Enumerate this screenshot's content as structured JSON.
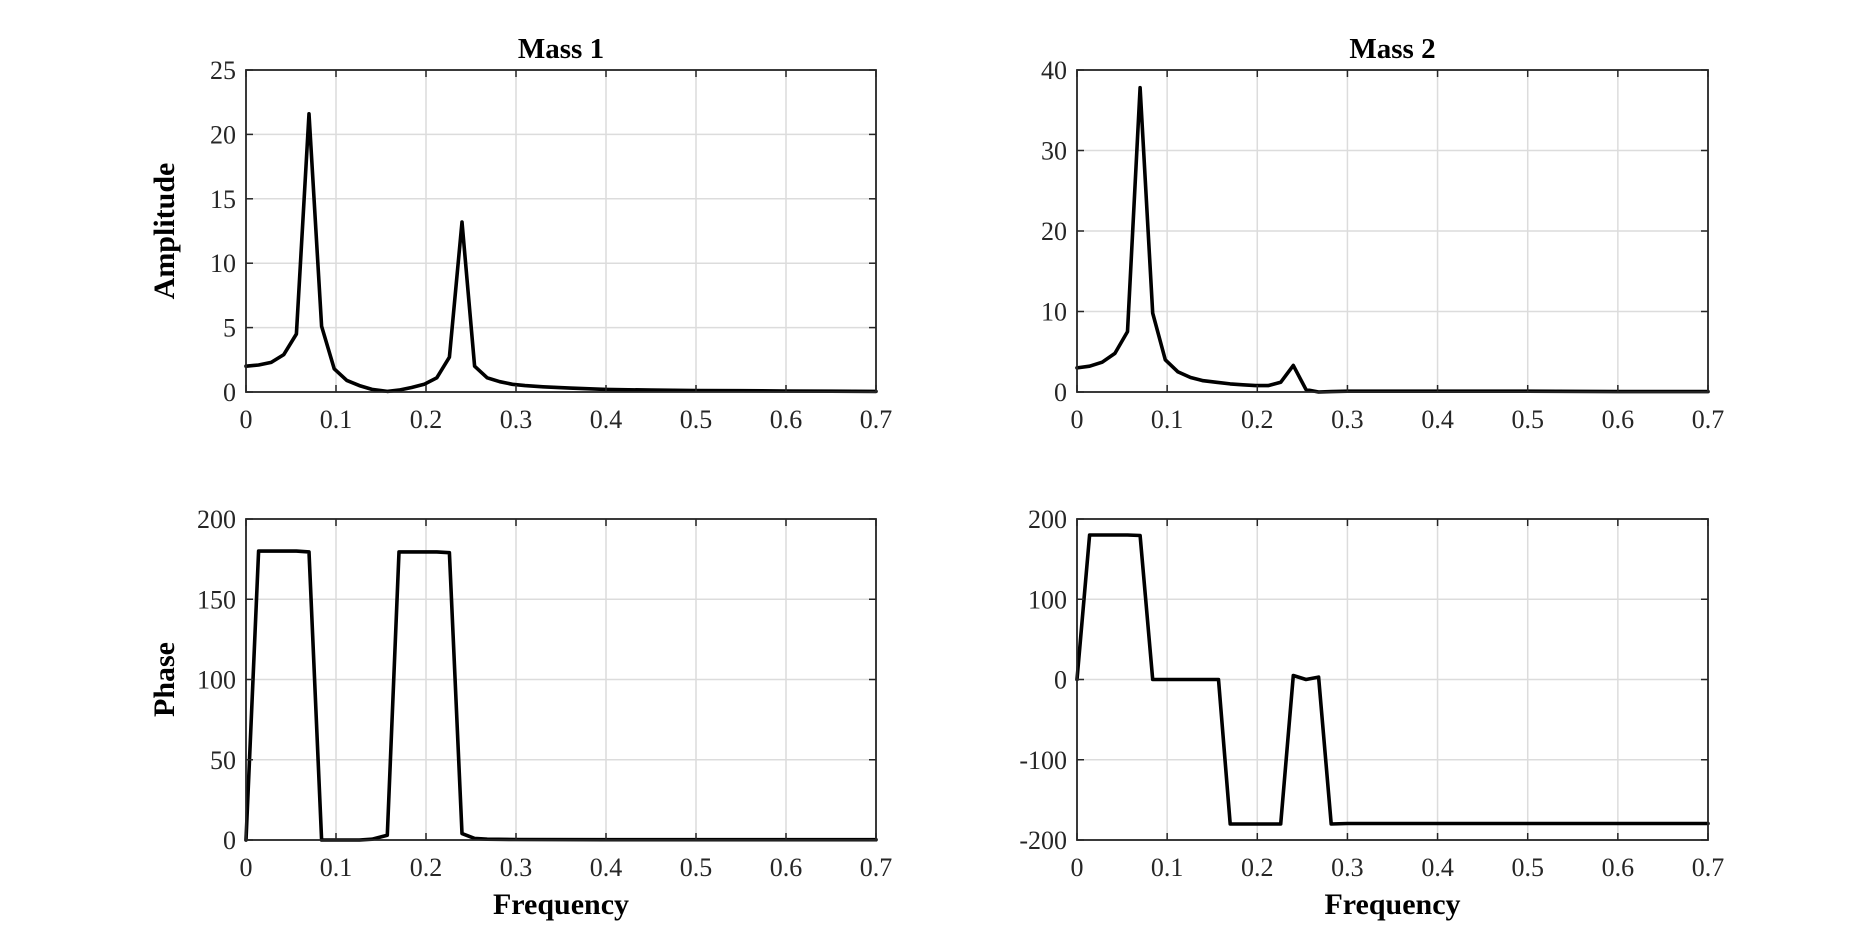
{
  "chart_data": [
    {
      "type": "line",
      "title": "Mass 1",
      "xlabel": "",
      "ylabel": "Amplitude",
      "xlim": [
        0,
        0.7
      ],
      "ylim": [
        0,
        25
      ],
      "xticks": [
        "0",
        "0.1",
        "0.2",
        "0.3",
        "0.4",
        "0.5",
        "0.6",
        "0.7"
      ],
      "yticks": [
        "0",
        "5",
        "10",
        "15",
        "20",
        "25"
      ],
      "grid": true,
      "series": [
        {
          "color": "#000000",
          "x": [
            0,
            0.014,
            0.028,
            0.042,
            0.056,
            0.07,
            0.084,
            0.098,
            0.112,
            0.126,
            0.14,
            0.157,
            0.17,
            0.184,
            0.198,
            0.212,
            0.226,
            0.24,
            0.254,
            0.268,
            0.282,
            0.296,
            0.31,
            0.33,
            0.36,
            0.4,
            0.45,
            0.5,
            0.55,
            0.6,
            0.65,
            0.7
          ],
          "y": [
            2.0,
            2.1,
            2.3,
            2.9,
            4.5,
            21.6,
            5.1,
            1.8,
            0.9,
            0.5,
            0.2,
            0.05,
            0.15,
            0.35,
            0.6,
            1.1,
            2.7,
            13.2,
            2.0,
            1.1,
            0.8,
            0.6,
            0.5,
            0.4,
            0.3,
            0.2,
            0.15,
            0.12,
            0.1,
            0.08,
            0.06,
            0.05
          ]
        }
      ]
    },
    {
      "type": "line",
      "title": "Mass 2",
      "xlabel": "",
      "ylabel": "",
      "xlim": [
        0,
        0.7
      ],
      "ylim": [
        0,
        40
      ],
      "xticks": [
        "0",
        "0.1",
        "0.2",
        "0.3",
        "0.4",
        "0.5",
        "0.6",
        "0.7"
      ],
      "yticks": [
        "0",
        "10",
        "20",
        "30",
        "40"
      ],
      "grid": true,
      "series": [
        {
          "color": "#000000",
          "x": [
            0,
            0.014,
            0.028,
            0.042,
            0.056,
            0.07,
            0.084,
            0.098,
            0.112,
            0.126,
            0.14,
            0.155,
            0.17,
            0.184,
            0.198,
            0.212,
            0.226,
            0.24,
            0.254,
            0.268,
            0.282,
            0.3,
            0.35,
            0.4,
            0.5,
            0.6,
            0.7
          ],
          "y": [
            3.0,
            3.2,
            3.7,
            4.8,
            7.5,
            37.8,
            9.8,
            4.0,
            2.5,
            1.8,
            1.4,
            1.2,
            1.0,
            0.9,
            0.8,
            0.8,
            1.2,
            3.3,
            0.3,
            0.0,
            0.05,
            0.1,
            0.1,
            0.1,
            0.1,
            0.05,
            0.05
          ]
        }
      ]
    },
    {
      "type": "line",
      "title": "",
      "xlabel": "Frequency",
      "ylabel": "Phase",
      "xlim": [
        0,
        0.7
      ],
      "ylim": [
        0,
        200
      ],
      "xticks": [
        "0",
        "0.1",
        "0.2",
        "0.3",
        "0.4",
        "0.5",
        "0.6",
        "0.7"
      ],
      "yticks": [
        "0",
        "50",
        "100",
        "150",
        "200"
      ],
      "grid": true,
      "series": [
        {
          "color": "#000000",
          "x": [
            0,
            0.014,
            0.028,
            0.042,
            0.056,
            0.07,
            0.084,
            0.098,
            0.112,
            0.126,
            0.14,
            0.157,
            0.17,
            0.184,
            0.198,
            0.212,
            0.226,
            0.24,
            0.254,
            0.268,
            0.3,
            0.4,
            0.5,
            0.6,
            0.7
          ],
          "y": [
            0,
            180,
            180,
            180,
            180,
            179.5,
            0,
            0,
            0,
            0,
            0.5,
            3,
            179.5,
            179.5,
            179.5,
            179.5,
            179,
            4,
            1,
            0.5,
            0.3,
            0.2,
            0.2,
            0.2,
            0.2
          ]
        }
      ]
    },
    {
      "type": "line",
      "title": "",
      "xlabel": "Frequency",
      "ylabel": "",
      "xlim": [
        0,
        0.7
      ],
      "ylim": [
        -200,
        200
      ],
      "xticks": [
        "0",
        "0.1",
        "0.2",
        "0.3",
        "0.4",
        "0.5",
        "0.6",
        "0.7"
      ],
      "yticks": [
        "-200",
        "-100",
        "0",
        "100",
        "200"
      ],
      "grid": true,
      "series": [
        {
          "color": "#000000",
          "x": [
            0,
            0.014,
            0.028,
            0.042,
            0.056,
            0.07,
            0.084,
            0.098,
            0.112,
            0.126,
            0.14,
            0.157,
            0.17,
            0.184,
            0.198,
            0.212,
            0.226,
            0.24,
            0.254,
            0.268,
            0.282,
            0.3,
            0.4,
            0.5,
            0.6,
            0.7
          ],
          "y": [
            0,
            180,
            180,
            180,
            180,
            179.5,
            0,
            0,
            0,
            0,
            0,
            0,
            -180,
            -180,
            -180,
            -180,
            -180,
            5,
            0,
            3,
            -180,
            -179.5,
            -179.5,
            -179.5,
            -179.5,
            -179.5
          ]
        }
      ]
    }
  ]
}
